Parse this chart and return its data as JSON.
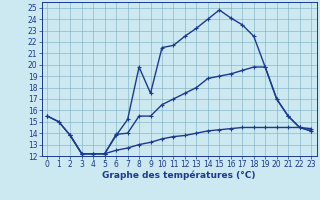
{
  "xlabel": "Graphe des températures (°C)",
  "background_color": "#cce8f0",
  "line_color": "#1a3a8f",
  "xlim": [
    -0.5,
    23.5
  ],
  "ylim": [
    12,
    25.5
  ],
  "xticks": [
    0,
    1,
    2,
    3,
    4,
    5,
    6,
    7,
    8,
    9,
    10,
    11,
    12,
    13,
    14,
    15,
    16,
    17,
    18,
    19,
    20,
    21,
    22,
    23
  ],
  "yticks": [
    12,
    13,
    14,
    15,
    16,
    17,
    18,
    19,
    20,
    21,
    22,
    23,
    24,
    25
  ],
  "line1_x": [
    0,
    1,
    2,
    3,
    4,
    5,
    6,
    7,
    8,
    9,
    10,
    11,
    12,
    13,
    14,
    15,
    16,
    17,
    18,
    19,
    20,
    21,
    22,
    23
  ],
  "line1_y": [
    15.5,
    15.0,
    13.8,
    12.2,
    12.2,
    12.2,
    13.8,
    15.2,
    19.8,
    17.5,
    21.5,
    21.7,
    22.5,
    23.2,
    24.0,
    24.8,
    24.1,
    23.5,
    22.5,
    19.8,
    17.0,
    15.5,
    14.5,
    14.2
  ],
  "line2_x": [
    0,
    1,
    2,
    3,
    4,
    5,
    6,
    7,
    8,
    9,
    10,
    11,
    12,
    13,
    14,
    15,
    16,
    17,
    18,
    19,
    20,
    21,
    22,
    23
  ],
  "line2_y": [
    15.5,
    15.0,
    13.8,
    12.2,
    12.2,
    12.2,
    13.9,
    14.0,
    15.5,
    15.5,
    16.5,
    17.0,
    17.5,
    18.0,
    18.8,
    19.0,
    19.2,
    19.5,
    19.8,
    19.8,
    17.0,
    15.5,
    14.5,
    14.2
  ],
  "line3_x": [
    2,
    3,
    4,
    5,
    6,
    7,
    8,
    9,
    10,
    11,
    12,
    13,
    14,
    15,
    16,
    17,
    18,
    19,
    20,
    21,
    22,
    23
  ],
  "line3_y": [
    13.8,
    12.2,
    12.2,
    12.2,
    12.5,
    12.7,
    13.0,
    13.2,
    13.5,
    13.7,
    13.8,
    14.0,
    14.2,
    14.3,
    14.4,
    14.5,
    14.5,
    14.5,
    14.5,
    14.5,
    14.5,
    14.4
  ],
  "tick_fontsize": 5.5,
  "xlabel_fontsize": 6.5,
  "grid_color": "#7ab0c0",
  "grid_alpha": 1.0,
  "grid_linewidth": 0.4,
  "line_linewidth": 1.0,
  "marker_size": 3.5
}
